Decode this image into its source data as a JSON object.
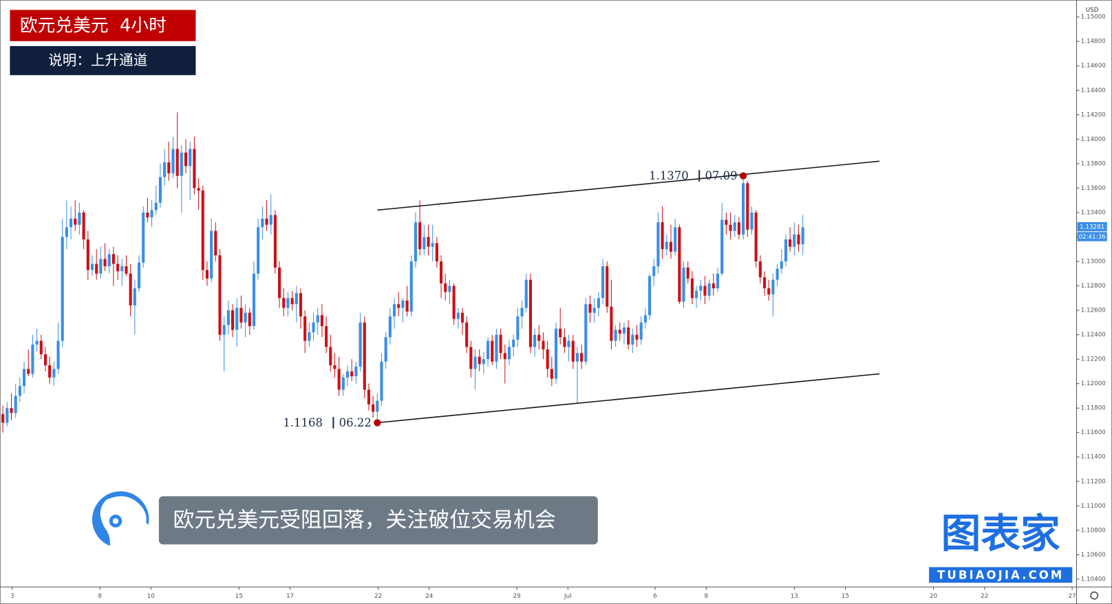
{
  "chart_data": {
    "type": "candlestick",
    "title": "欧元兑美元  4小时",
    "subtitle": "说明：上升通道",
    "currency": "USD",
    "up_color": "#3b8ee6",
    "down_color": "#cc1016",
    "last_price": 1.13281,
    "countdown": "02:41:36",
    "xlim": [
      -0.67,
      252.33
    ],
    "ylim": [
      1.10336,
      1.15139
    ],
    "grid": false,
    "xticks": [
      {
        "value": 2.2,
        "label": "3"
      },
      {
        "value": 22.8,
        "label": "8"
      },
      {
        "value": 34.8,
        "label": "10"
      },
      {
        "value": 55.5,
        "label": "15"
      },
      {
        "value": 67.5,
        "label": "17"
      },
      {
        "value": 88.2,
        "label": "22"
      },
      {
        "value": 100.2,
        "label": "24"
      },
      {
        "value": 120.8,
        "label": "29"
      },
      {
        "value": 132.8,
        "label": "Jul"
      },
      {
        "value": 153.3,
        "label": "6"
      },
      {
        "value": 165.3,
        "label": "8"
      },
      {
        "value": 186,
        "label": "13"
      },
      {
        "value": 198,
        "label": "15"
      },
      {
        "value": 218.7,
        "label": "20"
      },
      {
        "value": 230.7,
        "label": "22"
      },
      {
        "value": 251.3,
        "label": "27"
      }
    ],
    "yticks": [
      {
        "value": 1.15,
        "label": "1.15000"
      },
      {
        "value": 1.148,
        "label": "1.14800"
      },
      {
        "value": 1.146,
        "label": "1.14600"
      },
      {
        "value": 1.144,
        "label": "1.14400"
      },
      {
        "value": 1.142,
        "label": "1.14200"
      },
      {
        "value": 1.14,
        "label": "1.14000"
      },
      {
        "value": 1.138,
        "label": "1.13800"
      },
      {
        "value": 1.136,
        "label": "1.13600"
      },
      {
        "value": 1.134,
        "label": "1.13400"
      },
      {
        "value": 1.132,
        "label": "1.13200"
      },
      {
        "value": 1.13,
        "label": "1.13000"
      },
      {
        "value": 1.128,
        "label": "1.12800"
      },
      {
        "value": 1.126,
        "label": "1.12600"
      },
      {
        "value": 1.124,
        "label": "1.12400"
      },
      {
        "value": 1.122,
        "label": "1.12200"
      },
      {
        "value": 1.12,
        "label": "1.12000"
      },
      {
        "value": 1.118,
        "label": "1.11800"
      },
      {
        "value": 1.116,
        "label": "1.11600"
      },
      {
        "value": 1.114,
        "label": "1.11400"
      },
      {
        "value": 1.112,
        "label": "1.11200"
      },
      {
        "value": 1.11,
        "label": "1.11000"
      },
      {
        "value": 1.108,
        "label": "1.10800"
      },
      {
        "value": 1.106,
        "label": "1.10600"
      },
      {
        "value": 1.104,
        "label": "1.10400"
      }
    ],
    "channel": [
      {
        "x": [
          88,
          206
        ],
        "y": [
          1.1342,
          1.1382
        ]
      },
      {
        "x": [
          88,
          206
        ],
        "y": [
          1.1168,
          1.1208
        ]
      }
    ],
    "annotations": [
      {
        "index": 88,
        "value": 1.1168,
        "value_label": "1.1168",
        "date": "06.22"
      },
      {
        "index": 174,
        "value": 1.137,
        "value_label": "1.1370",
        "date": "07.09"
      }
    ],
    "ohlc": [
      [
        1.1175,
        1.1182,
        1.116,
        1.1168
      ],
      [
        1.1168,
        1.1185,
        1.1165,
        1.118
      ],
      [
        1.118,
        1.1192,
        1.117,
        1.1176
      ],
      [
        1.1176,
        1.12,
        1.1172,
        1.119
      ],
      [
        1.119,
        1.1205,
        1.1185,
        1.1198
      ],
      [
        1.1198,
        1.1218,
        1.1192,
        1.1212
      ],
      [
        1.1212,
        1.1228,
        1.1206,
        1.1208
      ],
      [
        1.1208,
        1.124,
        1.1205,
        1.1232
      ],
      [
        1.1232,
        1.1245,
        1.1226,
        1.1235
      ],
      [
        1.1235,
        1.124,
        1.122,
        1.1224
      ],
      [
        1.1224,
        1.123,
        1.121,
        1.1215
      ],
      [
        1.1215,
        1.1222,
        1.12,
        1.1205
      ],
      [
        1.1205,
        1.1218,
        1.1198,
        1.1212
      ],
      [
        1.1212,
        1.125,
        1.1208,
        1.1235
      ],
      [
        1.1235,
        1.1335,
        1.123,
        1.132
      ],
      [
        1.132,
        1.135,
        1.131,
        1.1328
      ],
      [
        1.1328,
        1.1345,
        1.1318,
        1.1335
      ],
      [
        1.1335,
        1.135,
        1.1325,
        1.133
      ],
      [
        1.133,
        1.1348,
        1.1322,
        1.134
      ],
      [
        1.134,
        1.1342,
        1.131,
        1.1318
      ],
      [
        1.1318,
        1.1325,
        1.1285,
        1.1293
      ],
      [
        1.1293,
        1.1305,
        1.1288,
        1.1298
      ],
      [
        1.1298,
        1.131,
        1.1285,
        1.129
      ],
      [
        1.129,
        1.1312,
        1.1286,
        1.1302
      ],
      [
        1.1302,
        1.1315,
        1.1292,
        1.1296
      ],
      [
        1.1296,
        1.131,
        1.129,
        1.1306
      ],
      [
        1.1306,
        1.1312,
        1.128,
        1.1298
      ],
      [
        1.1298,
        1.1305,
        1.1285,
        1.1292
      ],
      [
        1.1292,
        1.1302,
        1.128,
        1.1296
      ],
      [
        1.1296,
        1.1305,
        1.1288,
        1.129
      ],
      [
        1.129,
        1.1298,
        1.1255,
        1.1264
      ],
      [
        1.1264,
        1.1285,
        1.124,
        1.1278
      ],
      [
        1.1278,
        1.1305,
        1.1275,
        1.1299
      ],
      [
        1.1299,
        1.1345,
        1.1295,
        1.134
      ],
      [
        1.134,
        1.1352,
        1.1332,
        1.1336
      ],
      [
        1.1336,
        1.135,
        1.1328,
        1.1342
      ],
      [
        1.1342,
        1.1362,
        1.1338,
        1.1348
      ],
      [
        1.1348,
        1.138,
        1.1344,
        1.1369
      ],
      [
        1.1369,
        1.1392,
        1.1362,
        1.1381
      ],
      [
        1.1381,
        1.1398,
        1.1366,
        1.1372
      ],
      [
        1.1372,
        1.1402,
        1.1368,
        1.1392
      ],
      [
        1.1392,
        1.1422,
        1.136,
        1.137
      ],
      [
        1.137,
        1.1395,
        1.134,
        1.1389
      ],
      [
        1.1389,
        1.14,
        1.1372,
        1.1378
      ],
      [
        1.1378,
        1.1398,
        1.135,
        1.1392
      ],
      [
        1.1392,
        1.1402,
        1.1355,
        1.136
      ],
      [
        1.136,
        1.1368,
        1.1342,
        1.1358
      ],
      [
        1.1358,
        1.1362,
        1.1285,
        1.1293
      ],
      [
        1.1293,
        1.13,
        1.128,
        1.1286
      ],
      [
        1.1286,
        1.1335,
        1.1283,
        1.1325
      ],
      [
        1.1325,
        1.1332,
        1.13,
        1.1305
      ],
      [
        1.1305,
        1.131,
        1.1235,
        1.124
      ],
      [
        1.124,
        1.1255,
        1.121,
        1.1248
      ],
      [
        1.1248,
        1.1268,
        1.124,
        1.126
      ],
      [
        1.126,
        1.1265,
        1.1238,
        1.1244
      ],
      [
        1.1244,
        1.127,
        1.123,
        1.1262
      ],
      [
        1.1262,
        1.1272,
        1.1245,
        1.125
      ],
      [
        1.125,
        1.1265,
        1.1238,
        1.1258
      ],
      [
        1.1258,
        1.1262,
        1.124,
        1.1247
      ],
      [
        1.1247,
        1.13,
        1.1244,
        1.129
      ],
      [
        1.129,
        1.1335,
        1.1285,
        1.1328
      ],
      [
        1.1328,
        1.1345,
        1.1318,
        1.1335
      ],
      [
        1.1335,
        1.135,
        1.1325,
        1.133
      ],
      [
        1.133,
        1.1355,
        1.1322,
        1.1338
      ],
      [
        1.1338,
        1.1342,
        1.129,
        1.1295
      ],
      [
        1.1295,
        1.13,
        1.1262,
        1.127
      ],
      [
        1.127,
        1.1278,
        1.1255,
        1.1262
      ],
      [
        1.1262,
        1.1275,
        1.1255,
        1.127
      ],
      [
        1.127,
        1.1276,
        1.126,
        1.1265
      ],
      [
        1.1265,
        1.128,
        1.125,
        1.1274
      ],
      [
        1.1274,
        1.1278,
        1.1245,
        1.1255
      ],
      [
        1.1255,
        1.126,
        1.1225,
        1.1235
      ],
      [
        1.1235,
        1.125,
        1.123,
        1.1242
      ],
      [
        1.1242,
        1.1258,
        1.1235,
        1.125
      ],
      [
        1.125,
        1.1262,
        1.124,
        1.1256
      ],
      [
        1.1256,
        1.1265,
        1.1238,
        1.1247
      ],
      [
        1.1247,
        1.1255,
        1.1225,
        1.123
      ],
      [
        1.123,
        1.124,
        1.121,
        1.1215
      ],
      [
        1.1215,
        1.1225,
        1.1205,
        1.1212
      ],
      [
        1.1212,
        1.1222,
        1.119,
        1.1195
      ],
      [
        1.1195,
        1.1208,
        1.119,
        1.1205
      ],
      [
        1.1205,
        1.1215,
        1.1198,
        1.121
      ],
      [
        1.121,
        1.122,
        1.1202,
        1.1206
      ],
      [
        1.1206,
        1.1218,
        1.12,
        1.1214
      ],
      [
        1.1214,
        1.1258,
        1.121,
        1.125
      ],
      [
        1.125,
        1.1255,
        1.1188,
        1.1195
      ],
      [
        1.1195,
        1.12,
        1.1178,
        1.1183
      ],
      [
        1.1183,
        1.119,
        1.1172,
        1.1177
      ],
      [
        1.1177,
        1.1192,
        1.1168,
        1.1186
      ],
      [
        1.1186,
        1.1225,
        1.1182,
        1.1218
      ],
      [
        1.1218,
        1.1242,
        1.1212,
        1.1238
      ],
      [
        1.1238,
        1.1262,
        1.1232,
        1.1255
      ],
      [
        1.1255,
        1.127,
        1.1245,
        1.1265
      ],
      [
        1.1265,
        1.1275,
        1.1255,
        1.1262
      ],
      [
        1.1262,
        1.127,
        1.125,
        1.1268
      ],
      [
        1.1268,
        1.128,
        1.1255,
        1.1259
      ],
      [
        1.1259,
        1.1305,
        1.1255,
        1.13
      ],
      [
        1.13,
        1.134,
        1.1295,
        1.1332
      ],
      [
        1.1332,
        1.135,
        1.1305,
        1.131
      ],
      [
        1.131,
        1.133,
        1.1305,
        1.132
      ],
      [
        1.132,
        1.133,
        1.1305,
        1.1312
      ],
      [
        1.1312,
        1.133,
        1.13,
        1.1315
      ],
      [
        1.1315,
        1.132,
        1.1295,
        1.13
      ],
      [
        1.13,
        1.1305,
        1.127,
        1.1282
      ],
      [
        1.1282,
        1.129,
        1.1268,
        1.1275
      ],
      [
        1.1275,
        1.1285,
        1.1265,
        1.128
      ],
      [
        1.128,
        1.1282,
        1.1248,
        1.1253
      ],
      [
        1.1253,
        1.1262,
        1.1245,
        1.1258
      ],
      [
        1.1258,
        1.1262,
        1.124,
        1.125
      ],
      [
        1.125,
        1.1255,
        1.1225,
        1.123
      ],
      [
        1.123,
        1.1235,
        1.1205,
        1.1212
      ],
      [
        1.1212,
        1.1228,
        1.1195,
        1.1222
      ],
      [
        1.1222,
        1.1228,
        1.121,
        1.1216
      ],
      [
        1.1216,
        1.1226,
        1.1208,
        1.122
      ],
      [
        1.122,
        1.1238,
        1.1214,
        1.1235
      ],
      [
        1.1235,
        1.124,
        1.1215,
        1.1218
      ],
      [
        1.1218,
        1.1245,
        1.1212,
        1.124
      ],
      [
        1.124,
        1.1245,
        1.122,
        1.1225
      ],
      [
        1.1225,
        1.1232,
        1.12,
        1.122
      ],
      [
        1.122,
        1.1236,
        1.1215,
        1.123
      ],
      [
        1.123,
        1.124,
        1.1222,
        1.1236
      ],
      [
        1.1236,
        1.1262,
        1.123,
        1.1255
      ],
      [
        1.1255,
        1.1268,
        1.1245,
        1.1262
      ],
      [
        1.1262,
        1.129,
        1.1258,
        1.1285
      ],
      [
        1.1285,
        1.129,
        1.1225,
        1.123
      ],
      [
        1.123,
        1.1245,
        1.1222,
        1.124
      ],
      [
        1.124,
        1.1248,
        1.1228,
        1.1235
      ],
      [
        1.1235,
        1.1242,
        1.122,
        1.1228
      ],
      [
        1.1228,
        1.1235,
        1.1205,
        1.1212
      ],
      [
        1.1212,
        1.1222,
        1.1198,
        1.1204
      ],
      [
        1.1204,
        1.125,
        1.12,
        1.1245
      ],
      [
        1.1245,
        1.1262,
        1.1232,
        1.1238
      ],
      [
        1.1238,
        1.1245,
        1.1225,
        1.123
      ],
      [
        1.123,
        1.124,
        1.1218,
        1.1235
      ],
      [
        1.1235,
        1.124,
        1.1212,
        1.1218
      ],
      [
        1.1218,
        1.123,
        1.1184,
        1.1225
      ],
      [
        1.1225,
        1.1232,
        1.1212,
        1.1218
      ],
      [
        1.1218,
        1.127,
        1.1215,
        1.1265
      ],
      [
        1.1265,
        1.1272,
        1.125,
        1.1258
      ],
      [
        1.1258,
        1.127,
        1.125,
        1.1262
      ],
      [
        1.1262,
        1.1275,
        1.1255,
        1.127
      ],
      [
        1.127,
        1.1302,
        1.1265,
        1.1296
      ],
      [
        1.1296,
        1.13,
        1.1258,
        1.1263
      ],
      [
        1.1263,
        1.1285,
        1.1228,
        1.1235
      ],
      [
        1.1235,
        1.1248,
        1.123,
        1.1244
      ],
      [
        1.1244,
        1.125,
        1.1235,
        1.1241
      ],
      [
        1.1241,
        1.125,
        1.1232,
        1.1246
      ],
      [
        1.1246,
        1.1252,
        1.1228,
        1.1232
      ],
      [
        1.1232,
        1.1245,
        1.1225,
        1.124
      ],
      [
        1.124,
        1.1248,
        1.123,
        1.1236
      ],
      [
        1.1236,
        1.1255,
        1.1232,
        1.125
      ],
      [
        1.125,
        1.1262,
        1.1245,
        1.1256
      ],
      [
        1.1256,
        1.129,
        1.1252,
        1.1288
      ],
      [
        1.1288,
        1.1302,
        1.128,
        1.1296
      ],
      [
        1.1296,
        1.134,
        1.129,
        1.1332
      ],
      [
        1.1332,
        1.1345,
        1.1302,
        1.131
      ],
      [
        1.131,
        1.1322,
        1.1305,
        1.1316
      ],
      [
        1.1316,
        1.133,
        1.1302,
        1.1308
      ],
      [
        1.1308,
        1.1335,
        1.1305,
        1.1328
      ],
      [
        1.1328,
        1.133,
        1.1265,
        1.1267
      ],
      [
        1.1267,
        1.13,
        1.1262,
        1.1295
      ],
      [
        1.1295,
        1.13,
        1.1282,
        1.1286
      ],
      [
        1.1286,
        1.1292,
        1.1265,
        1.127
      ],
      [
        1.127,
        1.128,
        1.1262,
        1.1276
      ],
      [
        1.1276,
        1.1285,
        1.1268,
        1.128
      ],
      [
        1.128,
        1.1288,
        1.1265,
        1.1272
      ],
      [
        1.1272,
        1.1285,
        1.1268,
        1.1282
      ],
      [
        1.1282,
        1.129,
        1.1272,
        1.1278
      ],
      [
        1.1278,
        1.1295,
        1.1275,
        1.129
      ],
      [
        1.129,
        1.1348,
        1.1288,
        1.1334
      ],
      [
        1.1334,
        1.134,
        1.1322,
        1.133
      ],
      [
        1.133,
        1.134,
        1.1318,
        1.1325
      ],
      [
        1.1325,
        1.1338,
        1.132,
        1.1332
      ],
      [
        1.1332,
        1.1336,
        1.1318,
        1.1322
      ],
      [
        1.1322,
        1.137,
        1.1318,
        1.1364
      ],
      [
        1.1364,
        1.1366,
        1.132,
        1.1326
      ],
      [
        1.1326,
        1.1345,
        1.1322,
        1.134
      ],
      [
        1.134,
        1.1342,
        1.1295,
        1.13
      ],
      [
        1.13,
        1.1305,
        1.1282,
        1.1287
      ],
      [
        1.1287,
        1.1292,
        1.1272,
        1.1278
      ],
      [
        1.1278,
        1.1285,
        1.1268,
        1.1273
      ],
      [
        1.1273,
        1.129,
        1.1255,
        1.1285
      ],
      [
        1.1285,
        1.1298,
        1.128,
        1.1294
      ],
      [
        1.1294,
        1.131,
        1.129,
        1.13
      ],
      [
        1.13,
        1.1322,
        1.1296,
        1.1318
      ],
      [
        1.1318,
        1.1328,
        1.1308,
        1.1312
      ],
      [
        1.1312,
        1.1332,
        1.1305,
        1.1322
      ],
      [
        1.1322,
        1.133,
        1.1308,
        1.1314
      ],
      [
        1.1314,
        1.1338,
        1.1305,
        1.1328
      ]
    ]
  },
  "overlay": {
    "caption": "欧元兑美元受阻回落，关注破位交易机会",
    "logo_text": "图表家",
    "logo_url": "TUBIAOJIA.COM"
  }
}
